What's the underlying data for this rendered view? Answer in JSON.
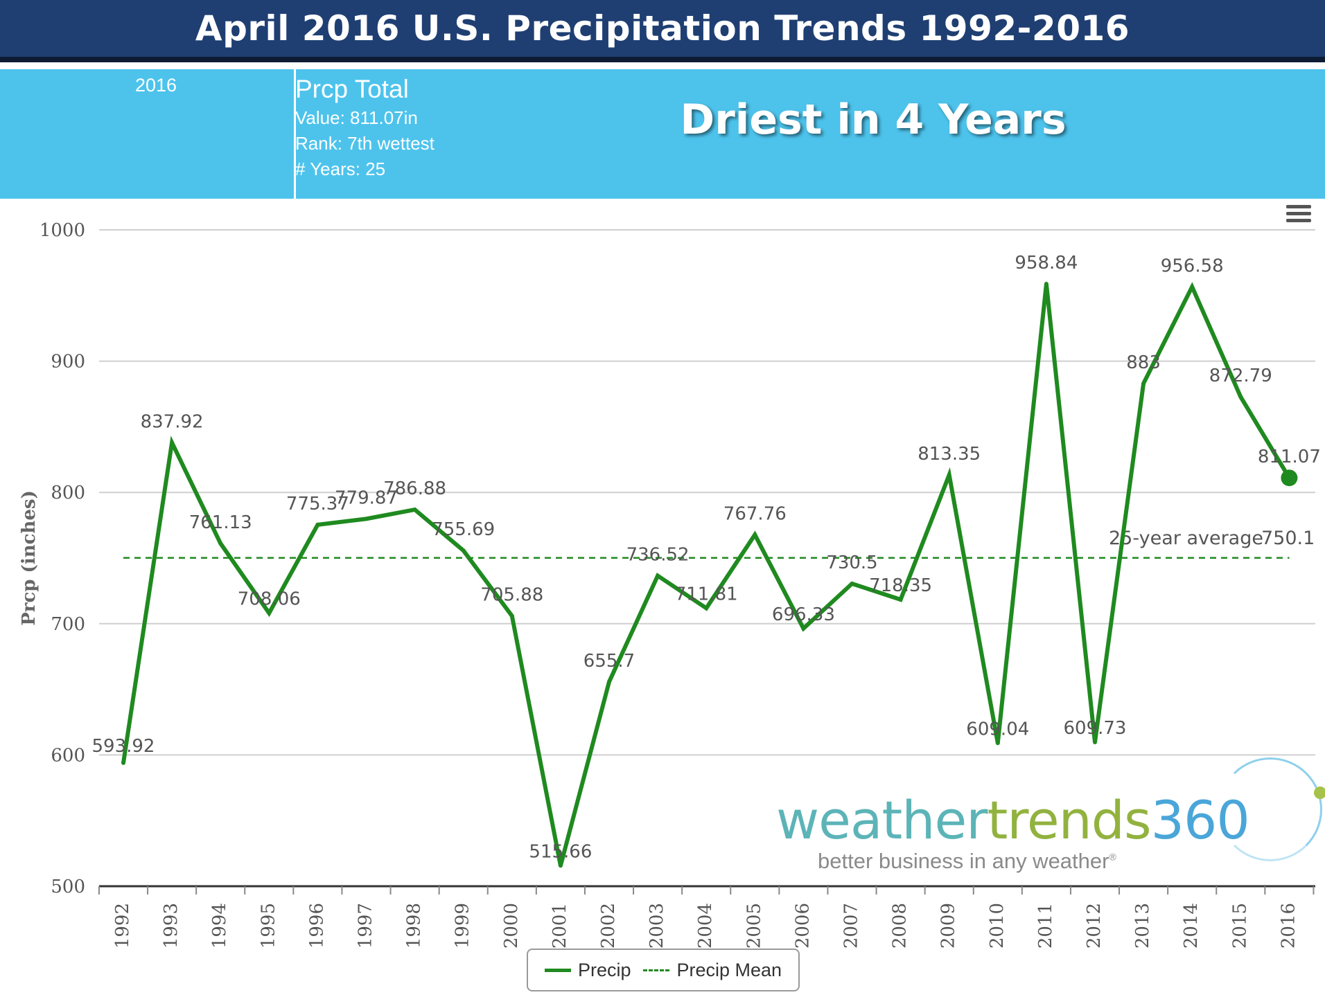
{
  "header": {
    "title": "April 2016 U.S. Precipitation Trends 1992-2016"
  },
  "info": {
    "year": "2016",
    "stat_title": "Prcp Total",
    "value_line": "Value: 811.07in",
    "rank_line": "Rank: 7th wettest",
    "years_line": "# Years: 25",
    "headline": "Driest in 4 Years"
  },
  "brand": {
    "weather": "weather",
    "trends": "trends",
    "num": "360",
    "tagline": "better business in any weather",
    "reg": "®"
  },
  "legend": {
    "precip": "Precip",
    "mean": "Precip Mean"
  },
  "chart_data": {
    "type": "line",
    "title": "April 2016 U.S. Precipitation Trends 1992-2016",
    "ylabel": "Prcp (inches)",
    "xlabel": "",
    "ylim": [
      500,
      1000
    ],
    "yticks": [
      500,
      600,
      700,
      800,
      900,
      1000
    ],
    "categories": [
      "1992",
      "1993",
      "1994",
      "1995",
      "1996",
      "1997",
      "1998",
      "1999",
      "2000",
      "2001",
      "2002",
      "2003",
      "2004",
      "2005",
      "2006",
      "2007",
      "2008",
      "2009",
      "2010",
      "2011",
      "2012",
      "2013",
      "2014",
      "2015",
      "2016"
    ],
    "series": [
      {
        "name": "Precip",
        "color": "#1f8a1f",
        "values": [
          593.92,
          837.92,
          761.13,
          708.06,
          775.37,
          779.87,
          786.88,
          755.69,
          705.88,
          515.66,
          655.7,
          736.52,
          711.81,
          767.76,
          696.33,
          730.5,
          718.35,
          813.35,
          609.04,
          958.84,
          609.73,
          883,
          956.58,
          872.79,
          811.07
        ],
        "labels": [
          "593.92",
          "837.92",
          "761.13",
          "708.06",
          "775.37",
          "779.87",
          "786.88",
          "755.69",
          "705.88",
          "515.66",
          "655.7",
          "736.52",
          "711.81",
          "767.76",
          "696.33",
          "730.5",
          "718.35",
          "813.35",
          "609.04",
          "958.84",
          "609.73",
          "883",
          "956.58",
          "872.79",
          "811.07"
        ]
      }
    ],
    "mean": {
      "name": "Precip Mean",
      "value": 750.1,
      "label": "25-year average",
      "value_label": "750.1"
    },
    "highlight_year": "2016",
    "grid": true,
    "legend": "bottom-center"
  }
}
